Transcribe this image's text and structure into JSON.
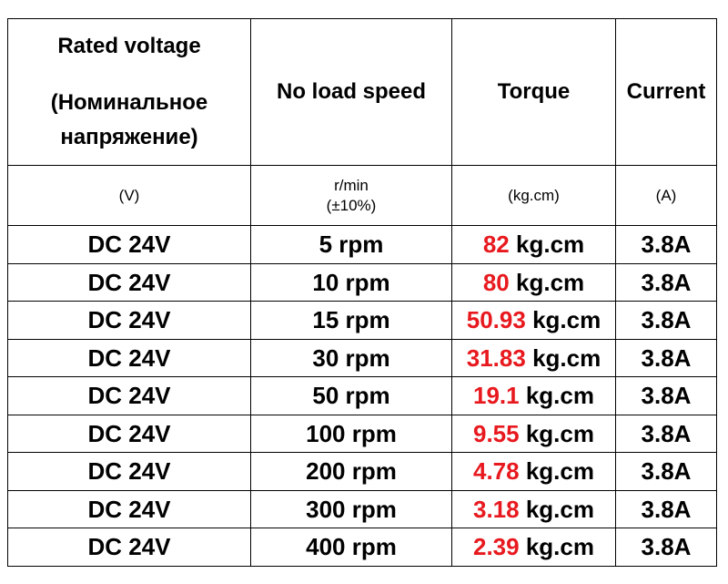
{
  "header": {
    "voltage": [
      "Rated voltage",
      "(Номинальное",
      "напряжение)"
    ],
    "speed": "No load speed",
    "torque": "Torque",
    "current": "Current"
  },
  "units": {
    "voltage": "(V)",
    "speed": [
      "r/min",
      "(±10%)"
    ],
    "torque": "(kg.cm)",
    "current": "(A)"
  },
  "torque_unit": "kg.cm",
  "colors": {
    "torque_value": "#e8191e",
    "border": "#000000"
  },
  "rows": [
    {
      "voltage": "DC 24V",
      "speed": "5 rpm",
      "torque": "82",
      "current": "3.8A"
    },
    {
      "voltage": "DC 24V",
      "speed": "10 rpm",
      "torque": "80",
      "current": "3.8A"
    },
    {
      "voltage": "DC 24V",
      "speed": "15 rpm",
      "torque": "50.93",
      "current": "3.8A"
    },
    {
      "voltage": "DC 24V",
      "speed": "30 rpm",
      "torque": "31.83",
      "current": "3.8A"
    },
    {
      "voltage": "DC 24V",
      "speed": "50 rpm",
      "torque": "19.1",
      "current": "3.8A"
    },
    {
      "voltage": "DC 24V",
      "speed": "100 rpm",
      "torque": "9.55",
      "current": "3.8A"
    },
    {
      "voltage": "DC 24V",
      "speed": "200 rpm",
      "torque": "4.78",
      "current": "3.8A"
    },
    {
      "voltage": "DC 24V",
      "speed": "300 rpm",
      "torque": "3.18",
      "current": "3.8A"
    },
    {
      "voltage": "DC 24V",
      "speed": "400 rpm",
      "torque": "2.39",
      "current": "3.8A"
    }
  ]
}
